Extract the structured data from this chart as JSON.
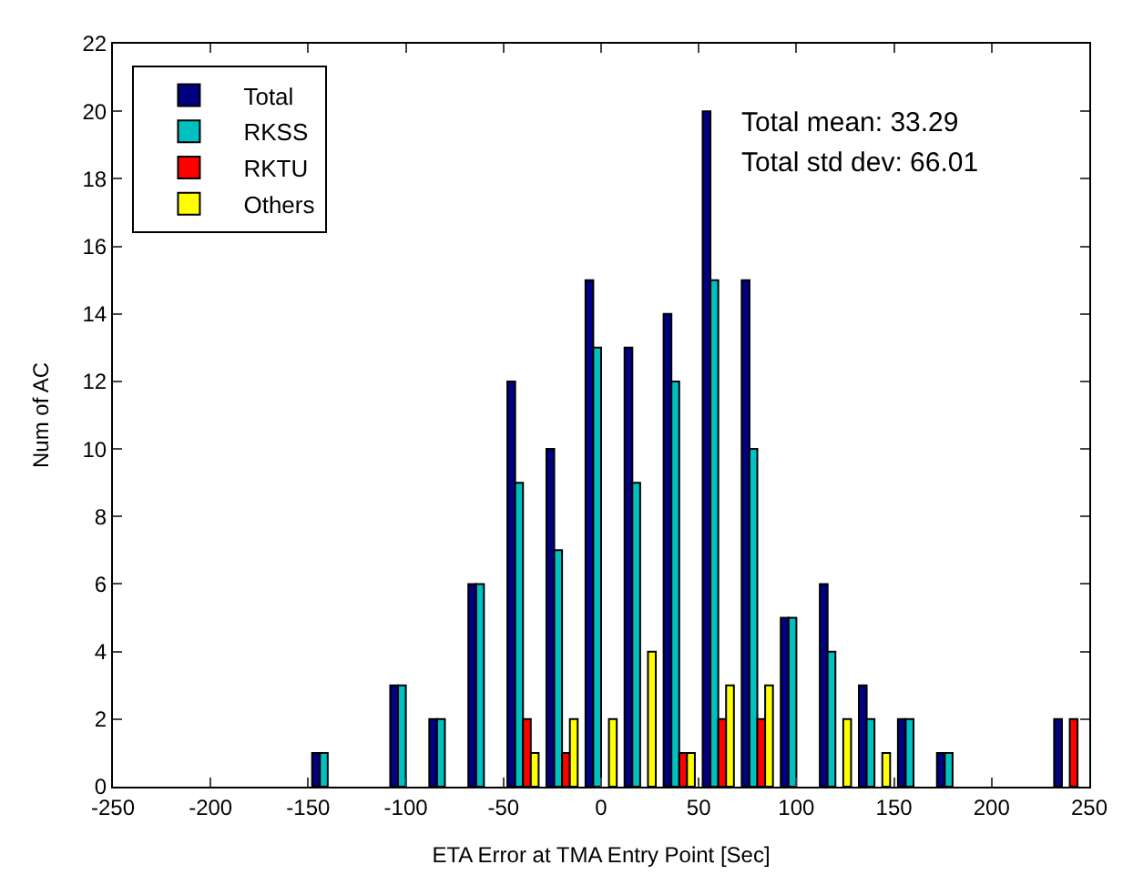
{
  "chart_data": {
    "type": "bar",
    "xlabel": "ETA Error at TMA Entry Point [Sec]",
    "ylabel": "Num of AC",
    "x": [
      -140,
      -100,
      -80,
      -60,
      -40,
      -20,
      0,
      20,
      40,
      60,
      80,
      100,
      120,
      140,
      160,
      180,
      240
    ],
    "series": [
      {
        "name": "Total",
        "color": "#000080",
        "values": [
          1,
          3,
          2,
          6,
          12,
          10,
          15,
          13,
          14,
          20,
          15,
          5,
          6,
          3,
          2,
          1,
          2
        ]
      },
      {
        "name": "RKSS",
        "color": "#00c0c0",
        "values": [
          1,
          3,
          2,
          6,
          9,
          7,
          13,
          9,
          12,
          15,
          10,
          5,
          4,
          2,
          2,
          1,
          null
        ]
      },
      {
        "name": "RKTU",
        "color": "#ff0000",
        "values": [
          null,
          null,
          null,
          null,
          2,
          1,
          null,
          null,
          1,
          2,
          2,
          null,
          null,
          null,
          null,
          null,
          2
        ]
      },
      {
        "name": "Others",
        "color": "#ffff00",
        "values": [
          null,
          null,
          null,
          null,
          1,
          2,
          2,
          4,
          1,
          3,
          3,
          null,
          2,
          1,
          null,
          null,
          null
        ]
      }
    ],
    "xlim": [
      -250,
      250
    ],
    "xticks": [
      -250,
      -200,
      -150,
      -100,
      -50,
      0,
      50,
      100,
      150,
      200,
      250
    ],
    "ylim": [
      0,
      22
    ],
    "yticks": [
      0,
      2,
      4,
      6,
      8,
      10,
      12,
      14,
      16,
      18,
      20,
      22
    ],
    "legend": "top left",
    "annotations": [
      "Total mean: 33.29",
      "Total std dev: 66.01"
    ]
  }
}
